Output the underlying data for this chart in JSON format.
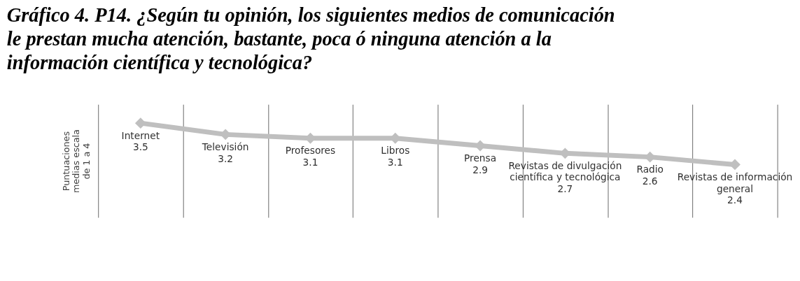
{
  "chart_data": {
    "type": "line",
    "title": "Gráfico 4. P14. ¿Según tu opinión, los siguientes medios de comunicación le prestan  mucha atención, bastante, poca ó ninguna atención a la información científica y tecnológica?",
    "ylabel": "Puntuaciones medias escala de 1 a 4",
    "categories": [
      "Internet",
      "Televisión",
      "Profesores",
      "Libros",
      "Prensa",
      "Revistas de divulgación científica y tecnológica",
      "Radio",
      "Revistas de información general"
    ],
    "values": [
      3.5,
      3.2,
      3.1,
      3.1,
      2.9,
      2.7,
      2.6,
      2.4
    ],
    "color": "#bfbfbf",
    "marker": "diamond",
    "ylim": [
      1,
      4
    ],
    "data_labels": true,
    "grid": "x",
    "tick_labels": false
  }
}
